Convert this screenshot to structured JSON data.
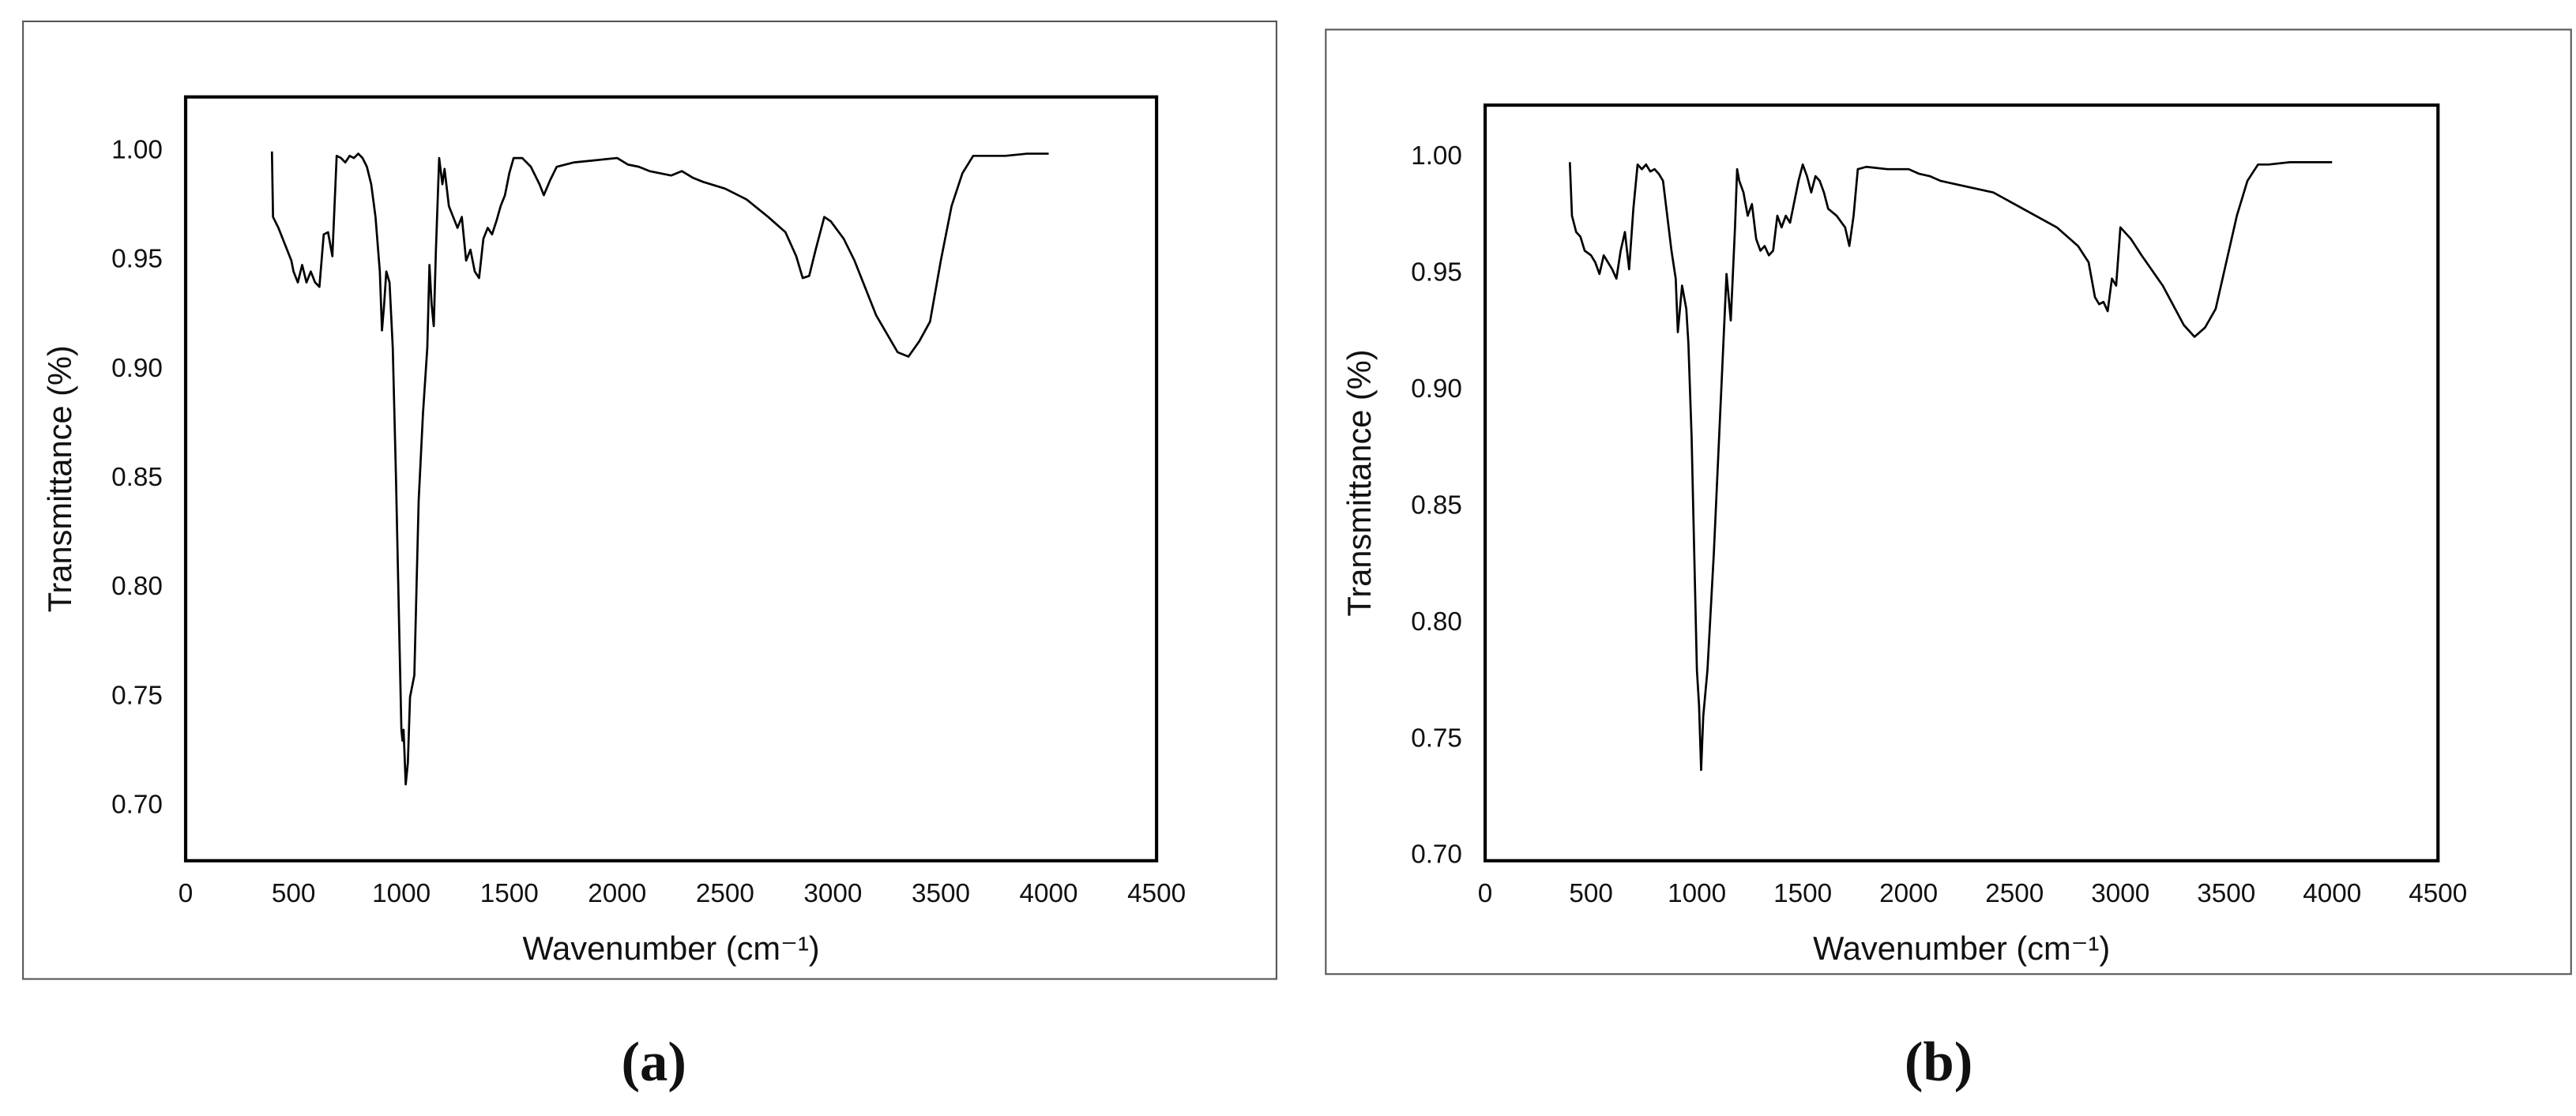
{
  "chart_data": [
    {
      "type": "line",
      "caption": "(a)",
      "xlabel": "Wavenumber (cm⁻¹)",
      "ylabel": "Transmittance (%)",
      "color": "#000000",
      "xlim": [
        0,
        4500
      ],
      "ylim": [
        0.675,
        1.025
      ],
      "xticks": [
        0,
        500,
        1000,
        1500,
        2000,
        2500,
        3000,
        3500,
        4000,
        4500
      ],
      "yticks": [
        {
          "value": 0.7,
          "label": "0.70"
        },
        0.75,
        {
          "value": 0.8,
          "label": "0.80"
        },
        0.85,
        {
          "value": 0.9,
          "label": "0.90"
        },
        0.95,
        {
          "value": 1.0,
          "label": "1.00"
        }
      ],
      "x": [
        400,
        405,
        430,
        450,
        470,
        490,
        500,
        520,
        540,
        560,
        580,
        600,
        620,
        640,
        660,
        680,
        700,
        720,
        740,
        760,
        780,
        800,
        820,
        840,
        860,
        880,
        900,
        910,
        920,
        930,
        945,
        960,
        975,
        990,
        1000,
        1005,
        1010,
        1020,
        1030,
        1040,
        1060,
        1080,
        1100,
        1120,
        1130,
        1140,
        1150,
        1160,
        1175,
        1190,
        1200,
        1220,
        1240,
        1260,
        1280,
        1300,
        1320,
        1340,
        1360,
        1380,
        1400,
        1420,
        1440,
        1460,
        1480,
        1500,
        1520,
        1560,
        1600,
        1640,
        1660,
        1690,
        1720,
        1800,
        1900,
        2000,
        2050,
        2100,
        2150,
        2200,
        2250,
        2300,
        2350,
        2400,
        2500,
        2600,
        2700,
        2780,
        2830,
        2860,
        2890,
        2920,
        2960,
        2990,
        3050,
        3100,
        3200,
        3300,
        3350,
        3400,
        3450,
        3500,
        3550,
        3600,
        3650,
        3700,
        3800,
        3900,
        4000
      ],
      "values": [
        1.0,
        0.97,
        0.965,
        0.96,
        0.955,
        0.95,
        0.945,
        0.94,
        0.948,
        0.94,
        0.945,
        0.94,
        0.938,
        0.962,
        0.963,
        0.952,
        0.998,
        0.997,
        0.995,
        0.998,
        0.997,
        0.999,
        0.997,
        0.993,
        0.985,
        0.97,
        0.945,
        0.918,
        0.93,
        0.945,
        0.94,
        0.91,
        0.85,
        0.78,
        0.735,
        0.73,
        0.735,
        0.71,
        0.72,
        0.75,
        0.76,
        0.84,
        0.88,
        0.91,
        0.948,
        0.93,
        0.92,
        0.955,
        0.997,
        0.985,
        0.992,
        0.975,
        0.97,
        0.965,
        0.97,
        0.95,
        0.955,
        0.945,
        0.942,
        0.96,
        0.965,
        0.962,
        0.968,
        0.975,
        0.98,
        0.99,
        0.997,
        0.997,
        0.993,
        0.985,
        0.98,
        0.987,
        0.993,
        0.995,
        0.996,
        0.997,
        0.994,
        0.993,
        0.991,
        0.99,
        0.989,
        0.991,
        0.988,
        0.986,
        0.983,
        0.978,
        0.97,
        0.963,
        0.952,
        0.942,
        0.943,
        0.955,
        0.97,
        0.968,
        0.96,
        0.95,
        0.925,
        0.908,
        0.906,
        0.913,
        0.922,
        0.95,
        0.975,
        0.99,
        0.998,
        0.998,
        0.998,
        0.999,
        0.999
      ]
    },
    {
      "type": "line",
      "caption": "(b)",
      "xlabel": "Wavenumber (cm⁻¹)",
      "ylabel": "Transmittance (%)",
      "color": "#000000",
      "xlim": [
        0,
        4500
      ],
      "ylim": [
        0.698,
        1.0225
      ],
      "xticks": [
        0,
        500,
        1000,
        1500,
        2000,
        2500,
        3000,
        3500,
        4000,
        4500
      ],
      "yticks": [
        {
          "value": 0.7,
          "label": "0.70"
        },
        0.75,
        {
          "value": 0.8,
          "label": "0.80"
        },
        0.85,
        {
          "value": 0.9,
          "label": "0.90"
        },
        0.95,
        {
          "value": 1.0,
          "label": "1.00"
        }
      ],
      "x": [
        400,
        410,
        430,
        450,
        470,
        500,
        520,
        540,
        560,
        580,
        600,
        620,
        640,
        660,
        680,
        700,
        720,
        740,
        760,
        780,
        800,
        820,
        840,
        860,
        880,
        900,
        910,
        920,
        930,
        950,
        960,
        975,
        990,
        1000,
        1010,
        1020,
        1030,
        1050,
        1080,
        1100,
        1120,
        1140,
        1160,
        1180,
        1190,
        1200,
        1220,
        1240,
        1260,
        1280,
        1300,
        1320,
        1340,
        1360,
        1380,
        1400,
        1420,
        1440,
        1480,
        1500,
        1520,
        1540,
        1560,
        1580,
        1600,
        1620,
        1660,
        1700,
        1720,
        1740,
        1760,
        1800,
        1900,
        2000,
        2050,
        2100,
        2150,
        2200,
        2300,
        2400,
        2500,
        2600,
        2700,
        2800,
        2850,
        2880,
        2900,
        2920,
        2940,
        2960,
        2980,
        3000,
        3050,
        3100,
        3200,
        3300,
        3350,
        3400,
        3450,
        3500,
        3550,
        3600,
        3650,
        3700,
        3800,
        4000
      ],
      "values": [
        0.998,
        0.975,
        0.968,
        0.966,
        0.96,
        0.958,
        0.955,
        0.95,
        0.958,
        0.955,
        0.952,
        0.948,
        0.96,
        0.968,
        0.952,
        0.978,
        0.997,
        0.995,
        0.997,
        0.994,
        0.995,
        0.993,
        0.99,
        0.975,
        0.96,
        0.948,
        0.925,
        0.935,
        0.945,
        0.935,
        0.92,
        0.88,
        0.82,
        0.78,
        0.765,
        0.737,
        0.76,
        0.78,
        0.83,
        0.87,
        0.91,
        0.95,
        0.93,
        0.97,
        0.995,
        0.99,
        0.985,
        0.975,
        0.98,
        0.965,
        0.96,
        0.962,
        0.958,
        0.96,
        0.975,
        0.97,
        0.975,
        0.972,
        0.99,
        0.997,
        0.992,
        0.985,
        0.992,
        0.99,
        0.985,
        0.978,
        0.975,
        0.97,
        0.962,
        0.975,
        0.995,
        0.996,
        0.995,
        0.995,
        0.993,
        0.992,
        0.99,
        0.989,
        0.987,
        0.985,
        0.98,
        0.975,
        0.97,
        0.962,
        0.955,
        0.94,
        0.937,
        0.938,
        0.934,
        0.948,
        0.945,
        0.97,
        0.965,
        0.958,
        0.945,
        0.928,
        0.923,
        0.927,
        0.935,
        0.955,
        0.975,
        0.99,
        0.997,
        0.997,
        0.998,
        0.998
      ]
    }
  ]
}
